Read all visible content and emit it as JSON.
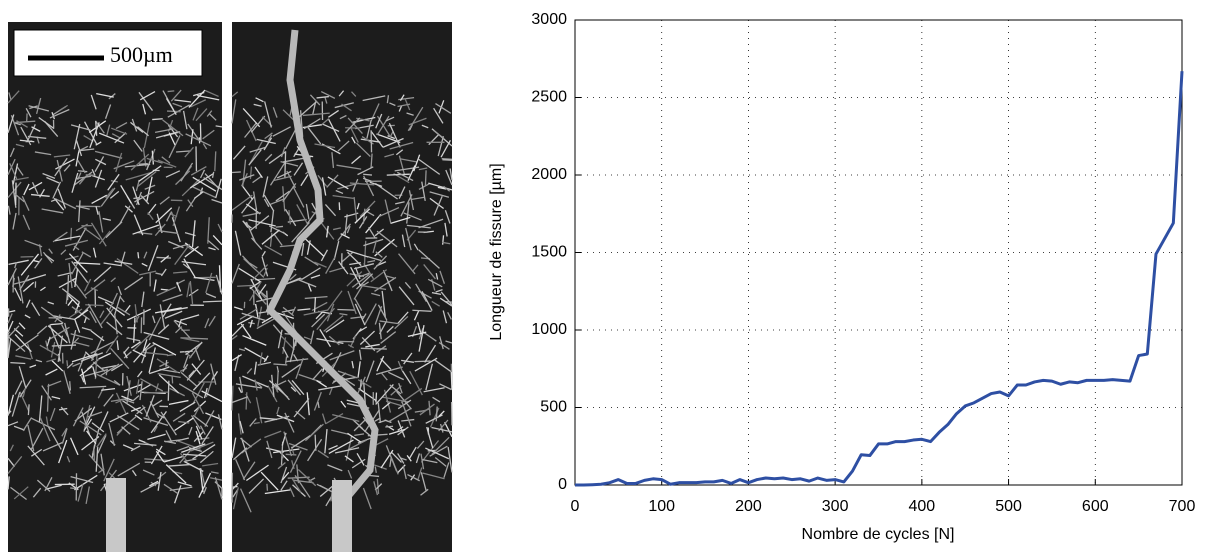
{
  "micrograph": {
    "scale_label": "500µm"
  },
  "chart_data": {
    "type": "line",
    "xlabel": "Nombre de cycles [N]",
    "ylabel": "Longueur de fissure [µm]",
    "x": [
      0,
      10,
      20,
      30,
      40,
      50,
      60,
      70,
      80,
      90,
      100,
      110,
      120,
      130,
      140,
      150,
      160,
      170,
      180,
      190,
      200,
      210,
      220,
      230,
      240,
      250,
      260,
      270,
      280,
      290,
      300,
      310,
      320,
      330,
      340,
      350,
      360,
      370,
      380,
      390,
      400,
      410,
      420,
      430,
      440,
      450,
      460,
      470,
      480,
      490,
      500,
      510,
      520,
      530,
      540,
      550,
      560,
      570,
      580,
      590,
      600,
      610,
      620,
      630,
      640,
      650,
      660,
      670,
      680,
      690,
      700
    ],
    "series": [
      {
        "name": "Longueur",
        "color": "#2e4fa3",
        "values": [
          0,
          0,
          2,
          5,
          15,
          35,
          10,
          10,
          30,
          40,
          35,
          5,
          15,
          15,
          15,
          20,
          20,
          30,
          10,
          35,
          15,
          35,
          45,
          40,
          45,
          35,
          40,
          25,
          45,
          30,
          35,
          20,
          90,
          195,
          190,
          265,
          265,
          280,
          280,
          290,
          295,
          280,
          340,
          390,
          460,
          510,
          530,
          560,
          590,
          600,
          575,
          645,
          645,
          665,
          675,
          670,
          650,
          665,
          660,
          675,
          675,
          675,
          680,
          675,
          670,
          835,
          845,
          1490,
          1590,
          1690,
          2670
        ]
      }
    ],
    "xlim": [
      0,
      700
    ],
    "ylim": [
      0,
      3000
    ],
    "xticks": [
      0,
      100,
      200,
      300,
      400,
      500,
      600,
      700
    ],
    "yticks": [
      0,
      500,
      1000,
      1500,
      2000,
      2500,
      3000
    ],
    "grid": true
  }
}
